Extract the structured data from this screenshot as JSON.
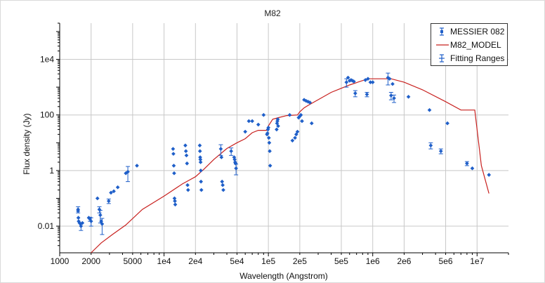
{
  "colors": {
    "data": "#1f5fc9",
    "model": "#c8201e",
    "grid": "#c8c8c8",
    "axis": "#000000"
  },
  "chart_data": {
    "type": "scatter",
    "title": "M82",
    "xlabel": "Wavelength (Angstrom)",
    "ylabel": "Flux density (Jy)",
    "xscale": "log",
    "yscale": "log",
    "xlim": [
      1000,
      20000000
    ],
    "ylim": [
      0.0011,
      200000
    ],
    "x_ticks": [
      {
        "v": 1000,
        "label": "1000"
      },
      {
        "v": 2000,
        "label": "2000"
      },
      {
        "v": 5000,
        "label": "5000"
      },
      {
        "v": 10000,
        "label": "1e4"
      },
      {
        "v": 20000,
        "label": "2e4"
      },
      {
        "v": 50000,
        "label": "5e4"
      },
      {
        "v": 100000,
        "label": "1e5"
      },
      {
        "v": 200000,
        "label": "2e5"
      },
      {
        "v": 500000,
        "label": "5e5"
      },
      {
        "v": 1000000,
        "label": "1e6"
      },
      {
        "v": 2000000,
        "label": "2e6"
      },
      {
        "v": 5000000,
        "label": "5e6"
      },
      {
        "v": 10000000,
        "label": "1e7"
      }
    ],
    "y_ticks": [
      {
        "v": 0.01,
        "label": "0.01"
      },
      {
        "v": 1,
        "label": "1"
      },
      {
        "v": 100,
        "label": "100"
      },
      {
        "v": 10000,
        "label": "1e4"
      }
    ],
    "grid": true,
    "legend_position": "top-right",
    "legend": [
      "MESSIER 082",
      "M82_MODEL",
      "Fitting Ranges"
    ],
    "series": [
      {
        "name": "MESSIER 082",
        "kind": "points-with-errorbars",
        "x": [
          1500,
          1500,
          1510,
          1520,
          1550,
          1580,
          1600,
          1650,
          1900,
          1950,
          2000,
          2300,
          2400,
          2450,
          2500,
          2550,
          2950,
          3100,
          3300,
          3600,
          4300,
          4500,
          5500,
          12200,
          12300,
          12400,
          12500,
          12600,
          12700,
          12800,
          16000,
          16200,
          16400,
          16600,
          16800,
          17000,
          22000,
          22100,
          22200,
          22300,
          22400,
          22500,
          22600,
          22800,
          35000,
          35500,
          36000,
          36500,
          37000,
          44000,
          47000,
          47500,
          48000,
          48500,
          49000,
          60000,
          65000,
          70000,
          80000,
          90000,
          97000,
          98000,
          99000,
          100000,
          101000,
          102000,
          103000,
          104000,
          120000,
          121000,
          122000,
          123000,
          124000,
          160000,
          170000,
          180000,
          185000,
          190000,
          195000,
          200000,
          205000,
          210000,
          220000,
          230000,
          240000,
          250000,
          260000,
          560000,
          580000,
          600000,
          620000,
          640000,
          660000,
          680000,
          850000,
          880000,
          900000,
          950000,
          1000000,
          1400000,
          1450000,
          1500000,
          1550000,
          1600000,
          2200000,
          3500000,
          3600000,
          4500000,
          5200000,
          8000000,
          9000000,
          13000000
        ],
        "y": [
          0.04,
          0.035,
          0.02,
          0.015,
          0.013,
          0.012,
          0.01,
          0.013,
          0.02,
          0.018,
          0.015,
          0.1,
          0.04,
          0.025,
          0.015,
          0.012,
          0.08,
          0.16,
          0.18,
          0.25,
          0.8,
          0.9,
          1.5,
          6,
          4,
          1.5,
          0.8,
          0.1,
          0.08,
          0.06,
          8,
          5,
          3.5,
          1.8,
          0.3,
          0.2,
          8,
          5,
          3,
          2.5,
          2,
          1,
          0.4,
          0.2,
          6,
          3,
          0.4,
          0.3,
          0.2,
          5,
          3,
          2.5,
          2,
          1.8,
          1.2,
          25,
          60,
          60,
          45,
          100,
          20,
          22,
          30,
          35,
          15,
          10,
          5,
          1.5,
          30,
          50,
          60,
          70,
          40,
          100,
          12,
          15,
          20,
          25,
          80,
          90,
          100,
          60,
          350,
          320,
          300,
          280,
          50,
          1500,
          2200,
          1700,
          1800,
          1700,
          1600,
          600,
          1800,
          550,
          2000,
          1500,
          1500,
          2200,
          2000,
          500,
          1300,
          400,
          450,
          150,
          8,
          5,
          50,
          1.8,
          1.2,
          0.7
        ],
        "yerr": [
          0.01,
          0,
          0,
          0,
          0,
          0,
          0.003,
          0,
          0,
          0.003,
          0.005,
          0,
          0.01,
          0.012,
          0,
          0.007,
          0.015,
          0,
          0,
          0,
          0,
          0.5,
          0,
          0,
          0,
          0,
          0,
          0,
          0,
          0,
          0,
          0,
          0,
          0,
          0,
          0,
          0,
          0,
          0,
          0,
          0,
          0,
          0,
          0,
          2.5,
          0,
          0,
          0,
          0,
          1.5,
          0,
          0,
          0,
          0,
          0.5,
          0,
          0,
          0,
          0,
          0,
          0,
          0,
          0,
          0,
          0,
          0,
          0,
          0,
          0,
          0,
          0,
          0,
          0,
          0,
          0,
          0,
          0,
          0,
          0,
          0,
          0,
          0,
          0,
          0,
          0,
          0,
          0,
          500,
          0,
          0,
          0,
          0,
          0,
          150,
          0,
          100,
          0,
          0,
          0,
          1000,
          0,
          150,
          0,
          120,
          0,
          0,
          2,
          1,
          0,
          0.3,
          0,
          0
        ]
      },
      {
        "name": "M82_MODEL",
        "kind": "line",
        "x": [
          2000,
          2500,
          3200,
          4300,
          6200,
          10000,
          15000,
          20000,
          24000,
          30000,
          40000,
          50000,
          60000,
          70000,
          80000,
          96000,
          100000,
          110000,
          125000,
          150000,
          190000,
          200000,
          220000,
          240000,
          400000,
          600000,
          900000,
          1500000,
          2000000,
          3000000,
          5000000,
          7000000,
          9500000,
          11000000,
          13000000
        ],
        "y": [
          0.0011,
          0.0025,
          0.005,
          0.011,
          0.04,
          0.12,
          0.33,
          0.6,
          1.1,
          2.5,
          6.2,
          10,
          14,
          23,
          28,
          28,
          40,
          70,
          80,
          95,
          100,
          130,
          180,
          220,
          650,
          1200,
          2000,
          2000,
          1500,
          800,
          300,
          150,
          150,
          1.5,
          0.15
        ]
      },
      {
        "name": "Fitting Ranges",
        "kind": "range-markers",
        "x": [],
        "y": []
      }
    ]
  }
}
